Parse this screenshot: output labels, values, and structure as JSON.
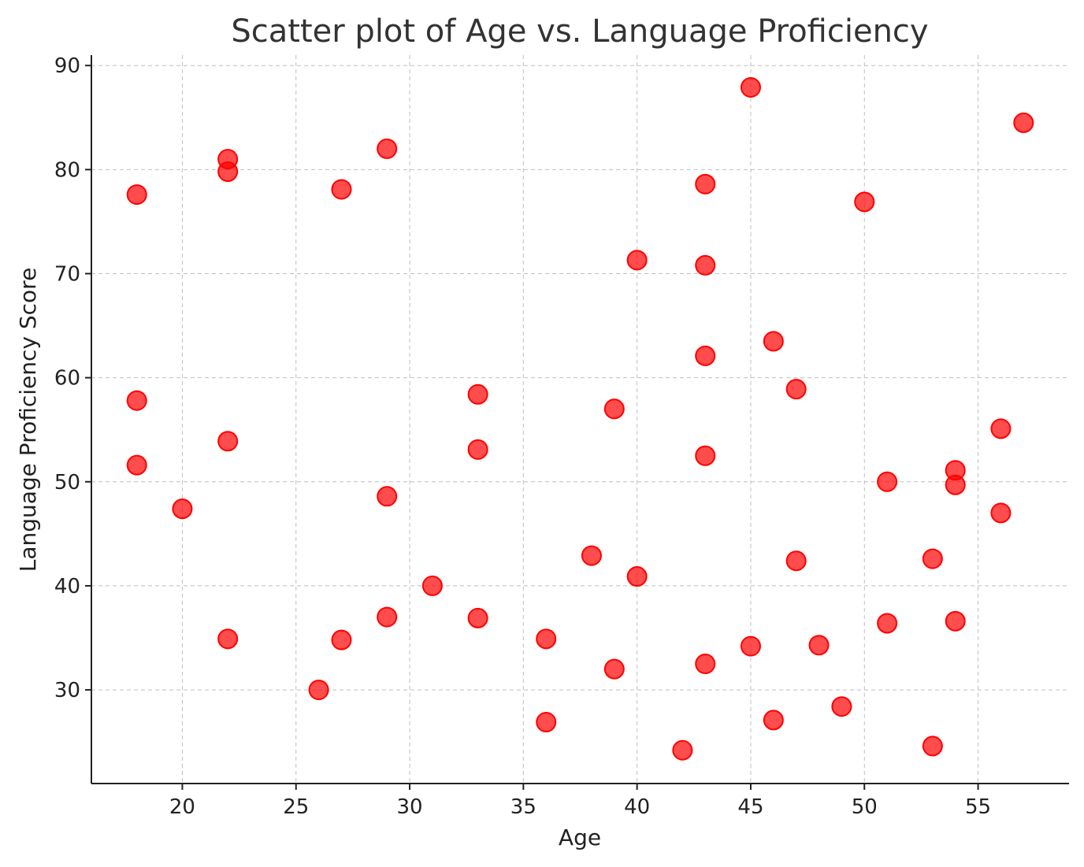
{
  "chart_data": {
    "type": "scatter",
    "title": "Scatter plot of Age vs. Language Proficiency",
    "xlabel": "Age",
    "ylabel": "Language Proficiency Score",
    "xlim": [
      16,
      59
    ],
    "ylim": [
      21,
      91
    ],
    "xticks": [
      20,
      25,
      30,
      35,
      40,
      45,
      50,
      55
    ],
    "yticks": [
      30,
      40,
      50,
      60,
      70,
      80,
      90
    ],
    "grid": true,
    "point_color": "#ff0000",
    "points": [
      {
        "x": 18,
        "y": 77.6
      },
      {
        "x": 18,
        "y": 57.8
      },
      {
        "x": 18,
        "y": 51.6
      },
      {
        "x": 20,
        "y": 47.4
      },
      {
        "x": 22,
        "y": 81.0
      },
      {
        "x": 22,
        "y": 79.8
      },
      {
        "x": 22,
        "y": 53.9
      },
      {
        "x": 22,
        "y": 34.9
      },
      {
        "x": 26,
        "y": 30.0
      },
      {
        "x": 27,
        "y": 78.1
      },
      {
        "x": 27,
        "y": 34.8
      },
      {
        "x": 29,
        "y": 82.0
      },
      {
        "x": 29,
        "y": 48.6
      },
      {
        "x": 29,
        "y": 37.0
      },
      {
        "x": 31,
        "y": 40.0
      },
      {
        "x": 33,
        "y": 58.4
      },
      {
        "x": 33,
        "y": 53.1
      },
      {
        "x": 33,
        "y": 36.9
      },
      {
        "x": 36,
        "y": 34.9
      },
      {
        "x": 36,
        "y": 26.9
      },
      {
        "x": 38,
        "y": 42.9
      },
      {
        "x": 39,
        "y": 57.0
      },
      {
        "x": 39,
        "y": 32.0
      },
      {
        "x": 40,
        "y": 71.3
      },
      {
        "x": 40,
        "y": 40.9
      },
      {
        "x": 42,
        "y": 24.2
      },
      {
        "x": 43,
        "y": 78.6
      },
      {
        "x": 43,
        "y": 70.8
      },
      {
        "x": 43,
        "y": 62.1
      },
      {
        "x": 43,
        "y": 52.5
      },
      {
        "x": 43,
        "y": 32.5
      },
      {
        "x": 45,
        "y": 87.9
      },
      {
        "x": 45,
        "y": 34.2
      },
      {
        "x": 46,
        "y": 63.5
      },
      {
        "x": 46,
        "y": 27.1
      },
      {
        "x": 47,
        "y": 58.9
      },
      {
        "x": 47,
        "y": 42.4
      },
      {
        "x": 48,
        "y": 34.3
      },
      {
        "x": 49,
        "y": 28.4
      },
      {
        "x": 50,
        "y": 76.9
      },
      {
        "x": 51,
        "y": 50.0
      },
      {
        "x": 51,
        "y": 36.4
      },
      {
        "x": 53,
        "y": 42.6
      },
      {
        "x": 53,
        "y": 24.6
      },
      {
        "x": 54,
        "y": 51.1
      },
      {
        "x": 54,
        "y": 49.7
      },
      {
        "x": 54,
        "y": 36.6
      },
      {
        "x": 56,
        "y": 55.1
      },
      {
        "x": 56,
        "y": 47.0
      },
      {
        "x": 57,
        "y": 84.5
      }
    ]
  }
}
